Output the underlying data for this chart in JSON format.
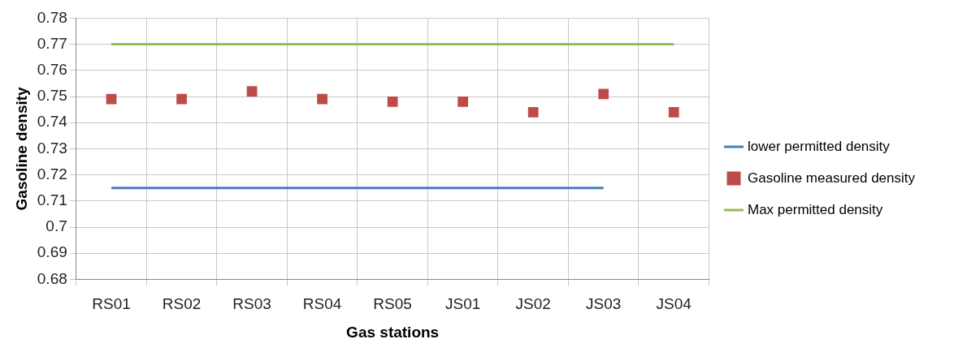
{
  "chart_data": {
    "type": "line",
    "xlabel": "Gas stations",
    "ylabel": "Gasoline density",
    "categories": [
      "RS01",
      "RS02",
      "RS03",
      "RS04",
      "RS05",
      "JS01",
      "JS02",
      "JS03",
      "JS04"
    ],
    "series": [
      {
        "name": "lower permitted density",
        "color": "#4a7ebb",
        "marker": "none",
        "values": [
          0.715,
          0.715,
          0.715,
          0.715,
          0.715,
          0.715,
          0.715,
          0.715,
          null
        ]
      },
      {
        "name": "Gasoline measured density",
        "type": "scatter",
        "color": "#be4b48",
        "marker": "square",
        "values": [
          0.749,
          0.749,
          0.752,
          0.749,
          0.748,
          0.748,
          0.744,
          0.751,
          0.744
        ]
      },
      {
        "name": "Max permitted density",
        "color": "#98b954",
        "marker": "none",
        "values": [
          0.77,
          0.77,
          0.77,
          0.77,
          0.77,
          0.77,
          0.77,
          0.77,
          0.77
        ]
      }
    ],
    "ylim": [
      0.68,
      0.78
    ],
    "yticks": [
      0.68,
      0.69,
      0.7,
      0.71,
      0.72,
      0.73,
      0.74,
      0.75,
      0.76,
      0.77,
      0.78
    ],
    "grid": true,
    "legend": "right"
  }
}
